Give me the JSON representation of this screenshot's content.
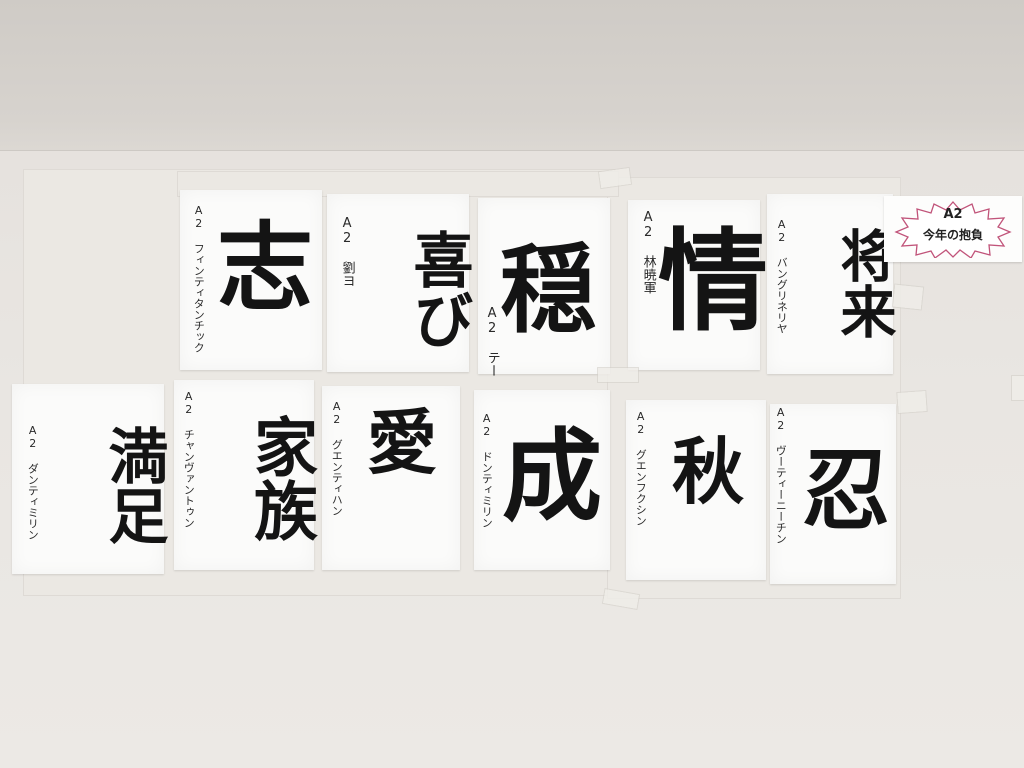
{
  "sign": {
    "line1": "A2",
    "line2": "今年の抱負",
    "accent_color": "#c1547a"
  },
  "top_row": [
    {
      "character": "志",
      "byline": "A2 フィンティタンチック"
    },
    {
      "character": "喜び",
      "byline": "A2 劉ヨ"
    },
    {
      "character": "穏",
      "byline": "A2 テー"
    },
    {
      "character": "情",
      "byline": "A2 林暁軍"
    },
    {
      "character": "将来",
      "byline": "A2 バングリネリヤ"
    }
  ],
  "bottom_row": [
    {
      "character": "満足",
      "byline": "A2 ダンティミリン"
    },
    {
      "character": "家族",
      "byline": "A2 チャンヴァントゥン"
    },
    {
      "character": "愛",
      "byline": "A2 グエンティハン"
    },
    {
      "character": "成",
      "byline": "A2 ドンティミリン"
    },
    {
      "character": "秋",
      "byline": "A2 グエンフクシン"
    },
    {
      "character": "忍",
      "byline": "A2 ヴーティーニーチン"
    }
  ]
}
